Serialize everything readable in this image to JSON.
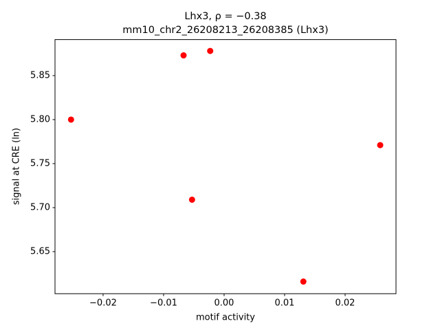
{
  "chart_data": {
    "type": "scatter",
    "title": "Lhx3, ρ = −0.38",
    "subtitle": "mm10_chr2_26208213_26208385 (Lhx3)",
    "x_label": "motif activity",
    "y_label": "signal at CRE (ln)",
    "color": "#ff0000",
    "x": [
      -0.0253,
      -0.0067,
      -0.0023,
      -0.0053,
      0.0258,
      0.0131
    ],
    "values": [
      5.8,
      5.873,
      5.878,
      5.709,
      5.771,
      5.616
    ],
    "xlim": [
      -0.02795,
      0.02841
    ],
    "ylim": [
      5.6022,
      5.8909
    ],
    "xticks": [
      {
        "value": -0.02,
        "label": "−0.02"
      },
      {
        "value": -0.01,
        "label": "−0.01"
      },
      {
        "value": 0,
        "label": "0.00"
      },
      0.01,
      0.02
    ],
    "yticks": [
      {
        "value": 5.65,
        "label": "5.65"
      },
      {
        "value": 5.7,
        "label": "5.70"
      },
      {
        "value": 5.75,
        "label": "5.75"
      },
      {
        "value": 5.8,
        "label": "5.80"
      },
      {
        "value": 5.85,
        "label": "5.85"
      }
    ]
  }
}
